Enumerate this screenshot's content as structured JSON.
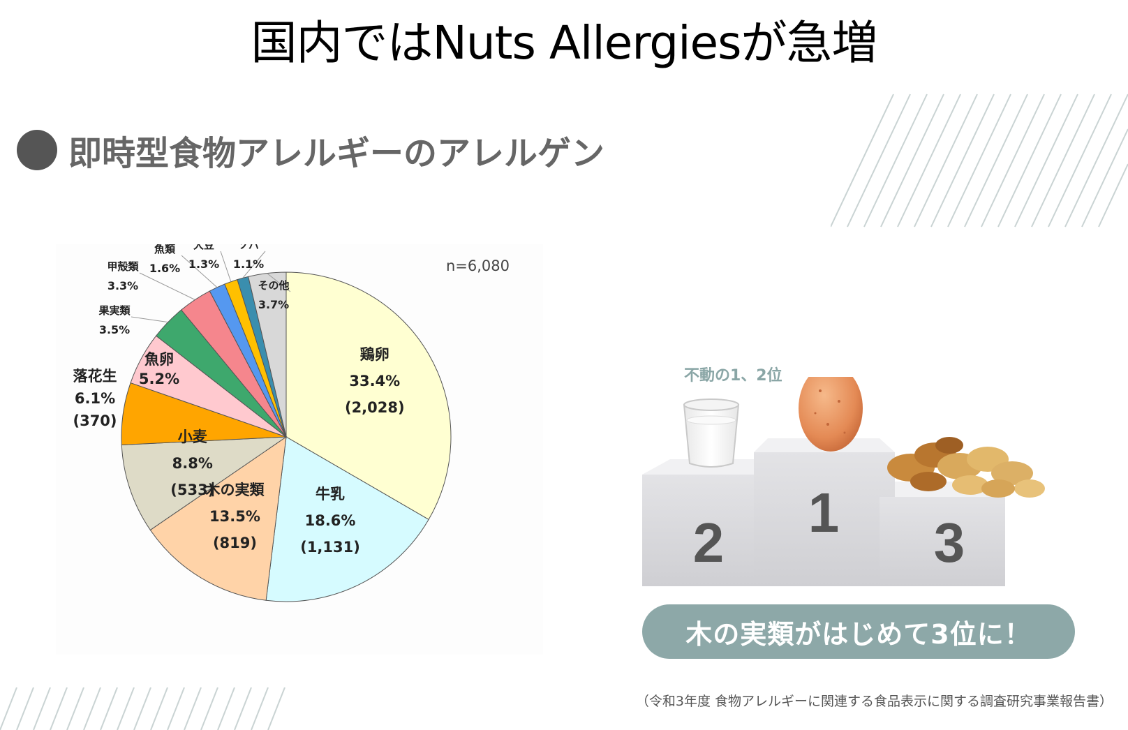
{
  "slide": {
    "title": "国内ではNuts Allergiesが急増",
    "section_heading": "即時型食物アレルギーのアレルゲン",
    "source_note": "（令和3年度 食物アレルギーに関連する食品表示に関する調査研究事業報告書）"
  },
  "podium": {
    "caption": "不動の1、2位",
    "ranks": [
      "2",
      "1",
      "3"
    ],
    "banner": "木の実類がはじめて3位に！"
  },
  "chart_data": {
    "type": "pie",
    "note": "n=6,080",
    "slices": [
      {
        "name": "鶏卵",
        "percent_label": "33.4%",
        "count_label": "(2,028)",
        "value": 33.4,
        "color": "#ffffd2"
      },
      {
        "name": "牛乳",
        "percent_label": "18.6%",
        "count_label": "(1,131)",
        "value": 18.6,
        "color": "#d6fbff"
      },
      {
        "name": "木の実類",
        "percent_label": "13.5%",
        "count_label": "(819)",
        "value": 13.5,
        "color": "#ffd3a8"
      },
      {
        "name": "小麦",
        "percent_label": "8.8%",
        "count_label": "(533)",
        "value": 8.8,
        "color": "#dedbc7"
      },
      {
        "name": "落花生",
        "percent_label": "6.1%",
        "count_label": "(370)",
        "value": 6.1,
        "color": "#ffa500"
      },
      {
        "name": "魚卵",
        "percent_label": "5.2%",
        "count_label": "",
        "value": 5.2,
        "color": "#ffc9cf"
      },
      {
        "name": "果実類",
        "percent_label": "3.5%",
        "count_label": "",
        "value": 3.5,
        "color": "#3ea86d"
      },
      {
        "name": "甲殻類",
        "percent_label": "3.3%",
        "count_label": "",
        "value": 3.3,
        "color": "#f5868d"
      },
      {
        "name": "魚類",
        "percent_label": "1.6%",
        "count_label": "",
        "value": 1.6,
        "color": "#5598f0"
      },
      {
        "name": "大豆",
        "percent_label": "1.3%",
        "count_label": "",
        "value": 1.3,
        "color": "#ffc000"
      },
      {
        "name": "ソバ",
        "percent_label": "1.1%",
        "count_label": "",
        "value": 1.1,
        "color": "#3a8eae"
      },
      {
        "name": "その他",
        "percent_label": "3.7%",
        "count_label": "",
        "value": 3.7,
        "color": "#d8d8d8"
      }
    ]
  }
}
